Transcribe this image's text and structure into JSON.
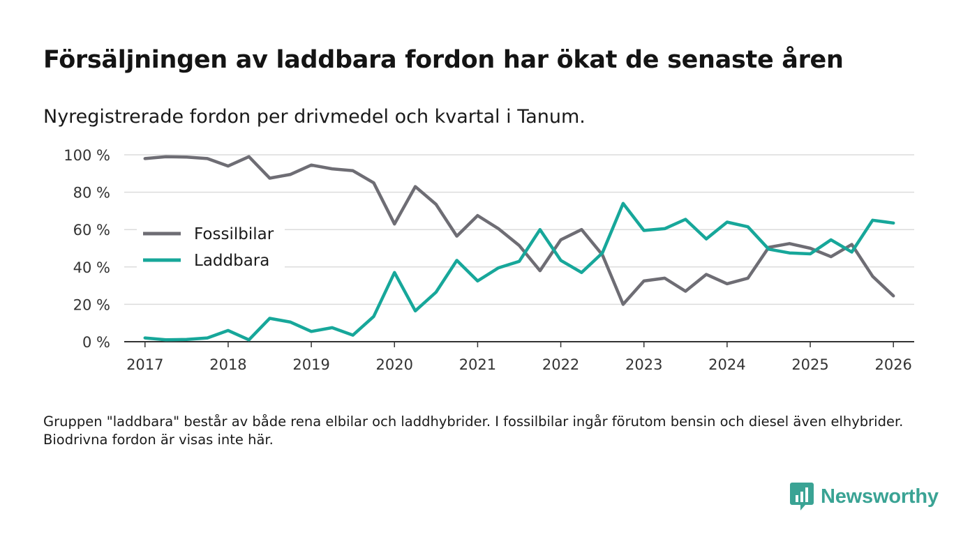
{
  "header": {
    "title": "Försäljningen av laddbara fordon har ökat de senaste åren",
    "subtitle": "Nyregistrerade fordon per drivmedel och kvartal i Tanum."
  },
  "footnote": "Gruppen \"laddbara\" består av både rena elbilar och laddhybrider. I fossilbilar ingår förutom bensin och diesel även elhybrider. Biodrivna fordon är visas inte här.",
  "brand": {
    "name": "Newsworthy",
    "icon": "newsworthy-logo-icon"
  },
  "colors": {
    "fossil": "#6e6d74",
    "laddbara": "#17a79a",
    "grid": "#dcdcdc",
    "axis": "#333333",
    "brand": "#3aa394"
  },
  "chart_data": {
    "type": "line",
    "title": "Försäljningen av laddbara fordon har ökat de senaste åren",
    "xlabel": "",
    "ylabel": "",
    "xlim": [
      2016.75,
      2026.25
    ],
    "ylim": [
      0,
      100
    ],
    "y_ticks": [
      0,
      20,
      40,
      60,
      80,
      100
    ],
    "y_tick_labels": [
      "0 %",
      "20 %",
      "40 %",
      "60 %",
      "80 %",
      "100 %"
    ],
    "x_ticks": [
      2017,
      2018,
      2019,
      2020,
      2021,
      2022,
      2023,
      2024,
      2025,
      2026
    ],
    "x_tick_labels": [
      "2017",
      "2018",
      "2019",
      "2020",
      "2021",
      "2022",
      "2023",
      "2024",
      "2025",
      "2026"
    ],
    "grid": true,
    "legend_position": "left-middle",
    "x": [
      2017,
      2017.25,
      2017.5,
      2017.75,
      2018,
      2018.25,
      2018.5,
      2018.75,
      2019,
      2019.25,
      2019.5,
      2019.75,
      2020,
      2020.25,
      2020.5,
      2020.75,
      2021,
      2021.25,
      2021.5,
      2021.75,
      2022,
      2022.25,
      2022.5,
      2022.75,
      2023,
      2023.25,
      2023.5,
      2023.75,
      2024,
      2024.25,
      2024.5,
      2024.75,
      2025,
      2025.25,
      2025.5,
      2025.75,
      2026
    ],
    "series": [
      {
        "name": "Fossilbilar",
        "color": "#6e6d74",
        "values": [
          98,
          99,
          98.8,
          98,
          94,
          99,
          87.5,
          89.5,
          94.5,
          92.5,
          91.5,
          85,
          63,
          83,
          73.5,
          56.5,
          67.5,
          60.5,
          51.5,
          38,
          54.5,
          60,
          46.5,
          20,
          32.5,
          34,
          27,
          36,
          31,
          34,
          50.5,
          52.5,
          50,
          45.5,
          52,
          35,
          24.5
        ]
      },
      {
        "name": "Laddbara",
        "color": "#17a79a",
        "values": [
          2,
          1,
          1.2,
          2,
          6,
          1,
          12.5,
          10.5,
          5.5,
          7.5,
          3.5,
          13.5,
          37,
          16.5,
          26.5,
          43.5,
          32.5,
          39.5,
          43,
          60,
          43.5,
          37,
          47.5,
          74,
          59.5,
          60.5,
          65.5,
          55,
          64,
          61.5,
          49.5,
          47.5,
          47,
          54.5,
          48,
          65,
          63.5
        ]
      }
    ]
  }
}
